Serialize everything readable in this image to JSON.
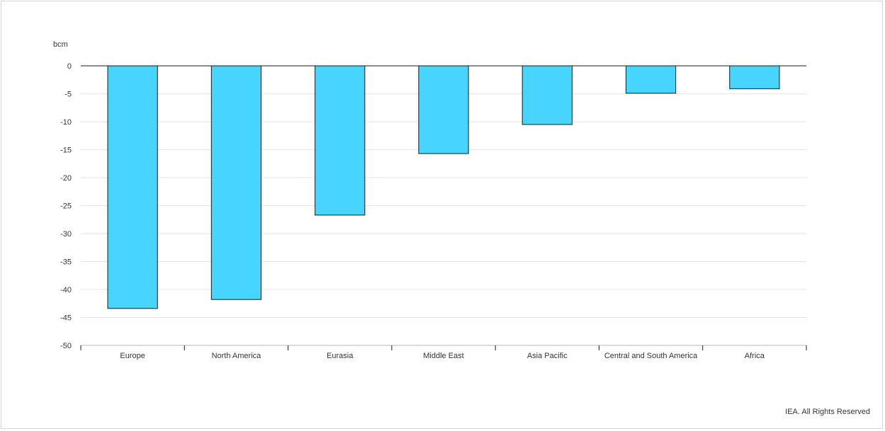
{
  "footer": "IEA. All Rights Reserved",
  "chart_data": {
    "type": "bar",
    "title": "",
    "xlabel": "",
    "ylabel": "bcm",
    "ylim": [
      -50,
      0
    ],
    "yticks": [
      0,
      -5,
      -10,
      -15,
      -20,
      -25,
      -30,
      -35,
      -40,
      -45,
      -50
    ],
    "grid": true,
    "legend": "none",
    "categories": [
      "Europe",
      "North America",
      "Eurasia",
      "Middle East",
      "Asia Pacific",
      "Central and South America",
      "Africa"
    ],
    "values": [
      -43.4,
      -41.8,
      -26.7,
      -15.7,
      -10.5,
      -4.9,
      -4.1
    ],
    "bar_color": "#47d4ff",
    "bar_stroke": "#1a1a1a"
  }
}
